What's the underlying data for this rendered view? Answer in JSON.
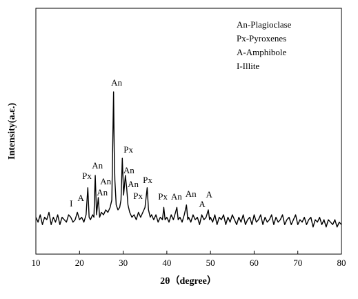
{
  "chart_data": {
    "type": "line",
    "xlabel": "2θ（degree）",
    "ylabel": "Intensity(a.ε.)",
    "xlim": [
      10,
      80
    ],
    "xticks": [
      10,
      20,
      30,
      40,
      50,
      60,
      70,
      80
    ],
    "ylim": [
      0,
      100
    ],
    "color": "#000000",
    "legend_notes": [
      "An-Plagioclase",
      "Px-Pyroxenes",
      "A-Amphibole",
      "I-Illite"
    ],
    "x": [
      10,
      10.5,
      11,
      11.5,
      12,
      12.5,
      13,
      13.5,
      14,
      14.5,
      15,
      15.5,
      16,
      16.5,
      17,
      17.5,
      18,
      18.5,
      19,
      19.5,
      20,
      20.5,
      21,
      21.5,
      21.9,
      22.2,
      22.5,
      23,
      23.3,
      23.6,
      23.9,
      24.3,
      24.6,
      25,
      25.5,
      26,
      26.5,
      27,
      27.4,
      27.8,
      27.95,
      28.1,
      28.4,
      28.8,
      29.2,
      29.5,
      29.8,
      30.1,
      30.5,
      30.8,
      31.1,
      31.5,
      32,
      32.5,
      33,
      33.5,
      34,
      34.5,
      35,
      35.5,
      35.8,
      36.2,
      36.5,
      37,
      37.5,
      38,
      38.5,
      39,
      39.3,
      39.6,
      40,
      40.5,
      41,
      41.5,
      42,
      42.3,
      42.6,
      43,
      43.5,
      44,
      44.5,
      44.8,
      45,
      45.5,
      46,
      46.5,
      47,
      47.5,
      48,
      48.5,
      49,
      49.5,
      49.8,
      50,
      50.5,
      51,
      51.5,
      52,
      52.5,
      53,
      53.5,
      54,
      54.5,
      55,
      55.5,
      56,
      56.5,
      57,
      57.5,
      58,
      58.5,
      59,
      59.5,
      60,
      60.5,
      61,
      61.5,
      62,
      62.5,
      63,
      63.5,
      64,
      64.5,
      65,
      65.5,
      66,
      66.5,
      67,
      67.5,
      68,
      68.5,
      69,
      69.5,
      70,
      70.5,
      71,
      71.5,
      72,
      72.5,
      73,
      73.5,
      74,
      74.5,
      75,
      75.5,
      76,
      76.5,
      77,
      77.5,
      78,
      78.5,
      79,
      79.5,
      80
    ],
    "values": [
      15,
      13,
      16,
      12,
      15,
      14,
      17,
      12,
      15,
      13,
      16,
      12,
      15,
      14,
      13,
      16,
      15,
      13,
      14,
      17,
      14,
      15,
      13,
      16,
      27,
      15,
      14,
      16,
      15,
      32,
      16,
      23,
      15,
      17,
      16,
      18,
      17,
      19,
      22,
      66,
      42,
      30,
      20,
      18,
      19,
      22,
      39,
      24,
      32,
      27,
      20,
      17,
      15,
      16,
      14,
      17,
      15,
      17,
      19,
      27,
      18,
      15,
      16,
      14,
      16,
      13,
      15,
      14,
      19,
      14,
      15,
      13,
      16,
      14,
      17,
      19,
      14,
      15,
      13,
      16,
      20,
      14,
      15,
      13,
      16,
      14,
      15,
      12,
      16,
      14,
      15,
      18,
      14,
      15,
      13,
      16,
      12,
      15,
      14,
      16,
      12,
      15,
      13,
      16,
      14,
      12,
      15,
      13,
      16,
      12,
      14,
      15,
      12,
      16,
      13,
      14,
      16,
      12,
      15,
      13,
      14,
      16,
      12,
      15,
      13,
      14,
      16,
      12,
      14,
      15,
      12,
      14,
      16,
      12,
      14,
      13,
      15,
      12,
      14,
      15,
      11,
      14,
      13,
      15,
      12,
      14,
      11,
      14,
      13,
      12,
      14,
      11,
      13,
      12
    ],
    "annotations": [
      {
        "text": "I",
        "x": 18.1,
        "y": 20.2
      },
      {
        "text": "A",
        "x": 20.3,
        "y": 22.5
      },
      {
        "text": "Px",
        "x": 21.7,
        "y": 31.5
      },
      {
        "text": "An",
        "x": 24.1,
        "y": 35.7
      },
      {
        "text": "An",
        "x": 26.0,
        "y": 29.2
      },
      {
        "text": "An",
        "x": 25.2,
        "y": 24.7
      },
      {
        "text": "An",
        "x": 28.5,
        "y": 69.4
      },
      {
        "text": "Px",
        "x": 31.2,
        "y": 42.1
      },
      {
        "text": "An",
        "x": 31.3,
        "y": 33.7
      },
      {
        "text": "An",
        "x": 32.3,
        "y": 28.1
      },
      {
        "text": "Px",
        "x": 35.6,
        "y": 29.8
      },
      {
        "text": "Px",
        "x": 33.4,
        "y": 23.3
      },
      {
        "text": "Px",
        "x": 39.1,
        "y": 23.0
      },
      {
        "text": "An",
        "x": 42.2,
        "y": 23.0
      },
      {
        "text": "An",
        "x": 45.5,
        "y": 24.2
      },
      {
        "text": "A",
        "x": 48.1,
        "y": 19.9
      },
      {
        "text": "A",
        "x": 49.7,
        "y": 23.9
      }
    ]
  }
}
